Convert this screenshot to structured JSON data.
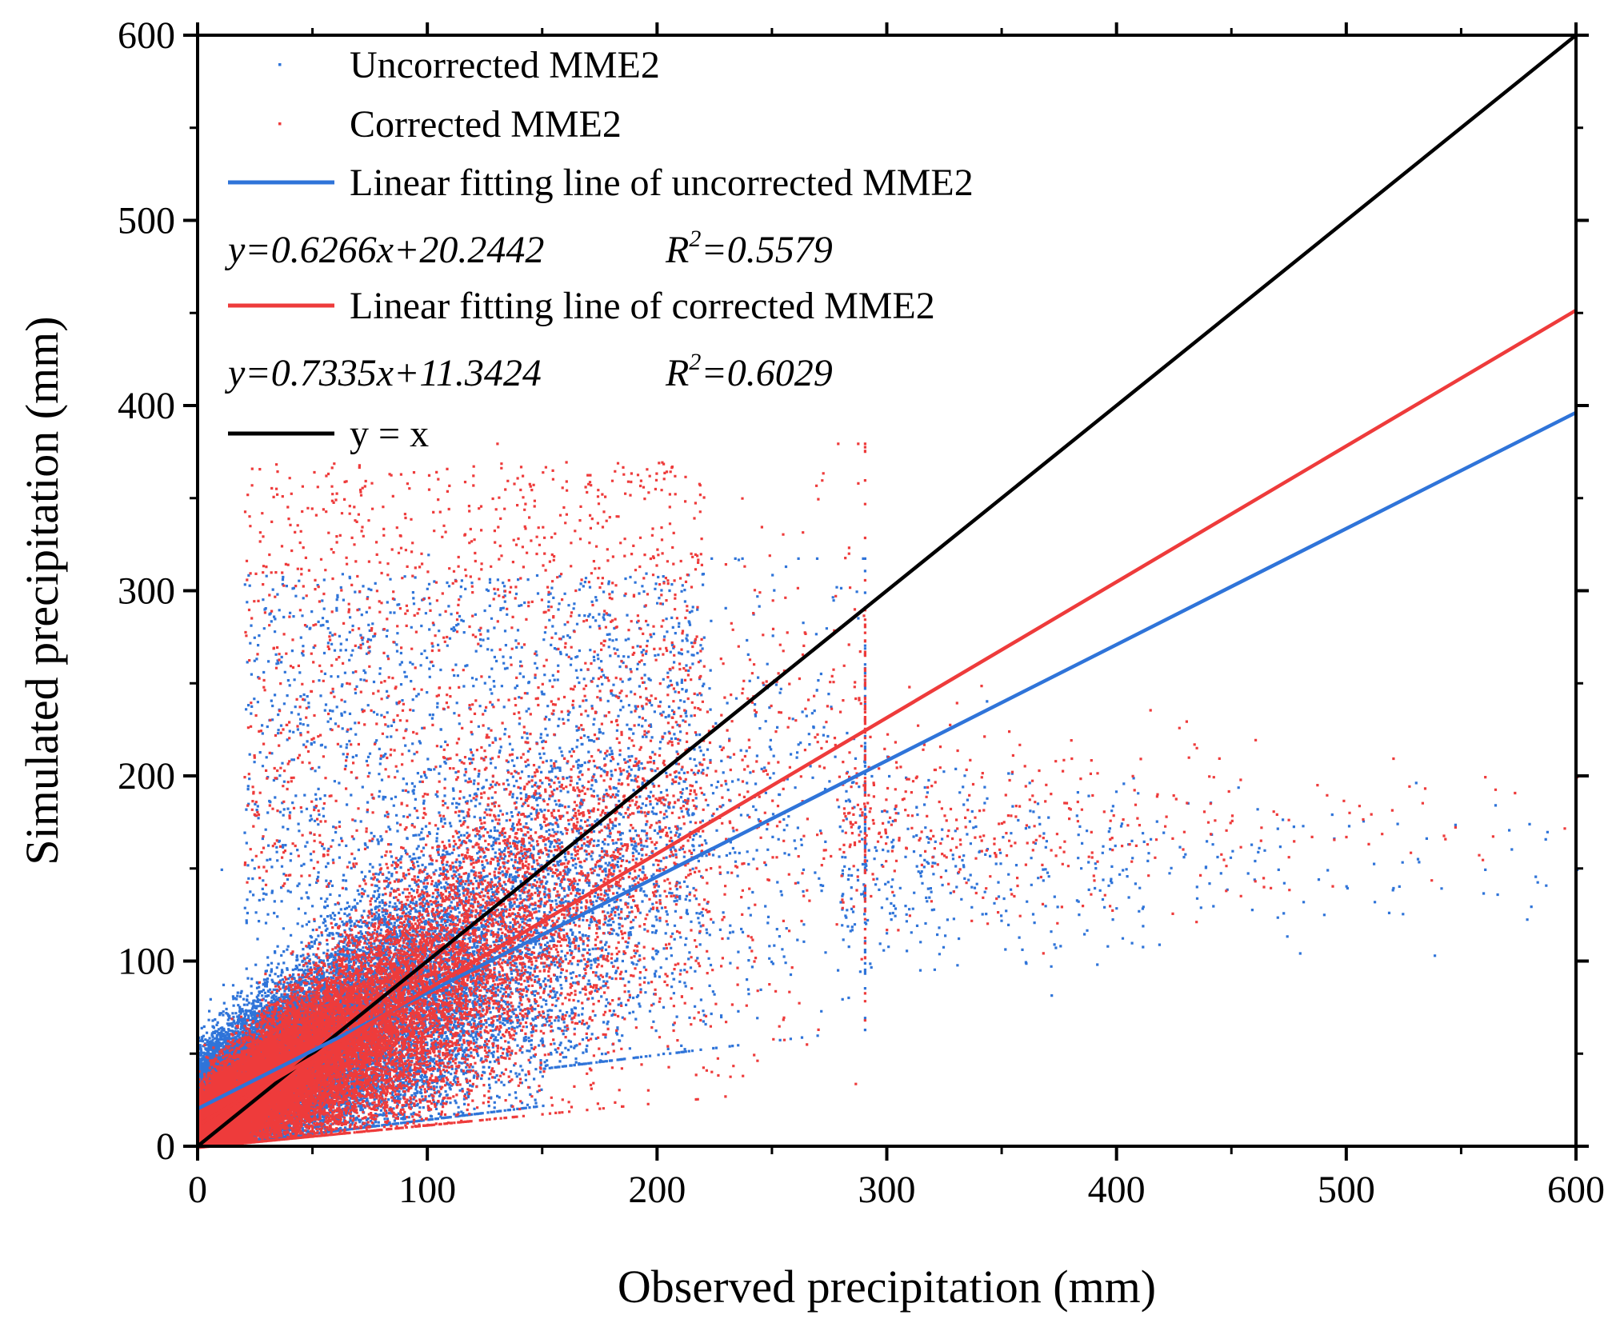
{
  "chart_data": {
    "type": "scatter",
    "title": "",
    "xlabel": "Observed precipitation (mm)",
    "ylabel": "Simulated precipitation (mm)",
    "xlim": [
      0,
      600
    ],
    "ylim": [
      0,
      600
    ],
    "xticks": [
      0,
      100,
      200,
      300,
      400,
      500,
      600
    ],
    "yticks": [
      0,
      100,
      200,
      300,
      400,
      500,
      600
    ],
    "xtick_labels": [
      "0",
      "100",
      "200",
      "300",
      "400",
      "500",
      "600"
    ],
    "ytick_labels": [
      "0",
      "100",
      "200",
      "300",
      "400",
      "500",
      "600"
    ],
    "minor_tick_step": 50,
    "grid": false,
    "legend_position": "top-left",
    "series": [
      {
        "name": "Uncorrected MME2",
        "kind": "scatter",
        "color": "#2f74d9",
        "cloud": {
          "x_max": 600,
          "approx_y_range": [
            20,
            320
          ],
          "note": "dense point cloud"
        },
        "sample_points": [
          [
            10,
            150
          ],
          [
            20,
            170
          ],
          [
            30,
            200
          ],
          [
            50,
            270
          ],
          [
            60,
            290
          ],
          [
            70,
            300
          ],
          [
            100,
            320
          ],
          [
            110,
            280
          ],
          [
            140,
            260
          ],
          [
            180,
            300
          ],
          [
            230,
            240
          ],
          [
            250,
            180
          ],
          [
            280,
            120
          ],
          [
            300,
            160
          ],
          [
            340,
            160
          ],
          [
            360,
            100
          ],
          [
            390,
            140
          ],
          [
            420,
            170
          ],
          [
            450,
            160
          ],
          [
            470,
            150
          ],
          [
            500,
            140
          ],
          [
            520,
            140
          ],
          [
            560,
            150
          ],
          [
            580,
            130
          ],
          [
            600,
            150
          ]
        ]
      },
      {
        "name": "Corrected MME2",
        "kind": "scatter",
        "color": "#ee3b3b",
        "cloud": {
          "x_max": 600,
          "approx_y_range": [
            0,
            380
          ],
          "note": "dense point cloud"
        },
        "sample_points": [
          [
            20,
            200
          ],
          [
            40,
            260
          ],
          [
            60,
            330
          ],
          [
            90,
            340
          ],
          [
            130,
            380
          ],
          [
            160,
            370
          ],
          [
            180,
            360
          ],
          [
            200,
            320
          ],
          [
            250,
            280
          ],
          [
            290,
            250
          ],
          [
            330,
            240
          ],
          [
            380,
            210
          ],
          [
            430,
            230
          ],
          [
            460,
            220
          ],
          [
            520,
            210
          ],
          [
            560,
            200
          ],
          [
            600,
            200
          ]
        ]
      },
      {
        "name": "Linear fitting line of uncorrected MME2",
        "kind": "line",
        "color": "#2f74d9",
        "slope": 0.6266,
        "intercept": 20.2442,
        "x": [
          0,
          600
        ],
        "y": [
          20.2442,
          396.2042
        ]
      },
      {
        "name": "Linear fitting line of corrected MME2",
        "kind": "line",
        "color": "#ee3b3b",
        "slope": 0.7335,
        "intercept": 11.3424,
        "x": [
          0,
          600
        ],
        "y": [
          11.3424,
          451.4424
        ]
      },
      {
        "name": "y = x",
        "kind": "line",
        "color": "#000000",
        "slope": 1,
        "intercept": 0,
        "x": [
          0,
          600
        ],
        "y": [
          0,
          600
        ]
      }
    ],
    "equations": [
      {
        "fit": "uncorrected",
        "formula": "y=0.6266x+20.2442",
        "r2_prefix": "R",
        "r2_exp": "2",
        "r2_value": "=0.5579"
      },
      {
        "fit": "corrected",
        "formula": "y=0.7335x+11.3424",
        "r2_prefix": "R",
        "r2_exp": "2",
        "r2_value": "=0.6029"
      }
    ]
  }
}
